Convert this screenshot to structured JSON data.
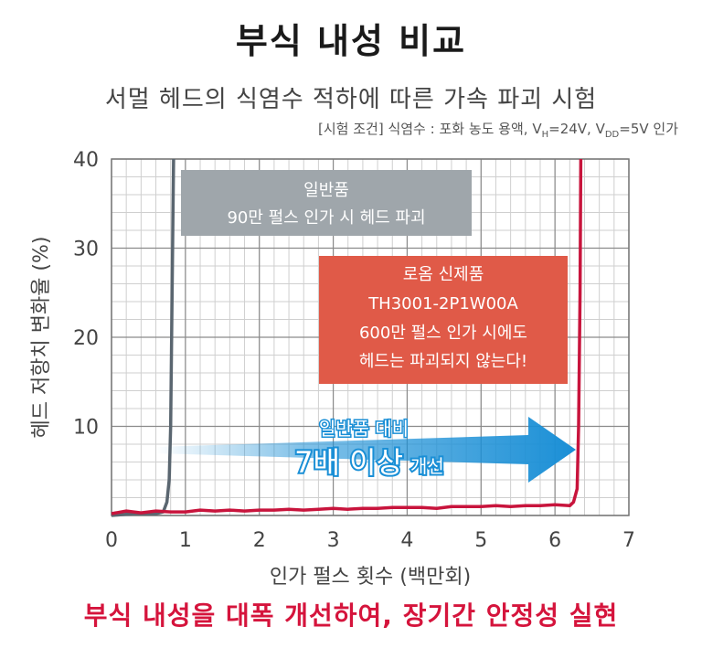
{
  "title": "부식 내성 비교",
  "subtitle": "서멀 헤드의 식염수 적하에 따른 가속 파괴 시험",
  "conditions": {
    "prefix": "[시험 조건] 식염수 : 포화 농도 용액, V",
    "vh_sub": "H",
    "mid": "=24V, V",
    "vdd_sub": "DD",
    "suffix": "=5V 인가"
  },
  "footer": "부식 내성을 대폭 개선하여, 장기간 안정성 실현",
  "chart_data": {
    "type": "line",
    "xlabel": "인가 펄스 횟수 (백만회)",
    "ylabel": "헤드 저항치 변화율 (%)",
    "xlim": [
      0,
      7
    ],
    "ylim": [
      0,
      40
    ],
    "xticks": [
      "0",
      "1",
      "2",
      "3",
      "4",
      "5",
      "6",
      "7"
    ],
    "yticks": [
      "10",
      "20",
      "30",
      "40"
    ],
    "grid": true,
    "series": [
      {
        "name": "일반품",
        "color": "#5a6670",
        "points": [
          [
            0,
            0
          ],
          [
            0.3,
            0.2
          ],
          [
            0.6,
            0.2
          ],
          [
            0.7,
            0.4
          ],
          [
            0.75,
            1.5
          ],
          [
            0.78,
            4
          ],
          [
            0.8,
            10
          ],
          [
            0.82,
            25
          ],
          [
            0.84,
            40
          ]
        ]
      },
      {
        "name": "로옴 신제품",
        "color": "#c8143c",
        "points": [
          [
            0,
            0.2
          ],
          [
            0.2,
            0.5
          ],
          [
            0.4,
            0.3
          ],
          [
            0.6,
            0.5
          ],
          [
            0.8,
            0.4
          ],
          [
            1,
            0.4
          ],
          [
            1.2,
            0.6
          ],
          [
            1.4,
            0.5
          ],
          [
            1.6,
            0.6
          ],
          [
            1.8,
            0.5
          ],
          [
            2,
            0.6
          ],
          [
            2.2,
            0.6
          ],
          [
            2.4,
            0.7
          ],
          [
            2.6,
            0.6
          ],
          [
            2.8,
            0.7
          ],
          [
            3,
            0.8
          ],
          [
            3.2,
            0.7
          ],
          [
            3.4,
            0.8
          ],
          [
            3.6,
            0.8
          ],
          [
            3.8,
            0.9
          ],
          [
            4,
            0.9
          ],
          [
            4.2,
            0.9
          ],
          [
            4.4,
            0.8
          ],
          [
            4.6,
            1
          ],
          [
            4.8,
            1
          ],
          [
            5,
            1
          ],
          [
            5.2,
            1.1
          ],
          [
            5.4,
            1
          ],
          [
            5.6,
            1.1
          ],
          [
            5.8,
            1.1
          ],
          [
            6,
            1.2
          ],
          [
            6.2,
            1.1
          ],
          [
            6.25,
            1.5
          ],
          [
            6.3,
            3
          ],
          [
            6.32,
            10
          ],
          [
            6.34,
            25
          ],
          [
            6.35,
            40
          ]
        ]
      }
    ],
    "annotations": {
      "conventional": [
        "일반품",
        "90만 펄스 인가 시 헤드 파괴"
      ],
      "new": [
        "로옴 신제품",
        "TH3001-2P1W00A",
        "600만 펄스 인가 시에도",
        "헤드는 파괴되지 않는다!"
      ],
      "arrow_line1": "일반품 대비",
      "arrow_big": "7배 이상",
      "arrow_small": "개선"
    },
    "colors": {
      "conventional_box": "#9fa6ab",
      "new_box": "#e05a48",
      "arrow": "#1a8fd6"
    }
  }
}
